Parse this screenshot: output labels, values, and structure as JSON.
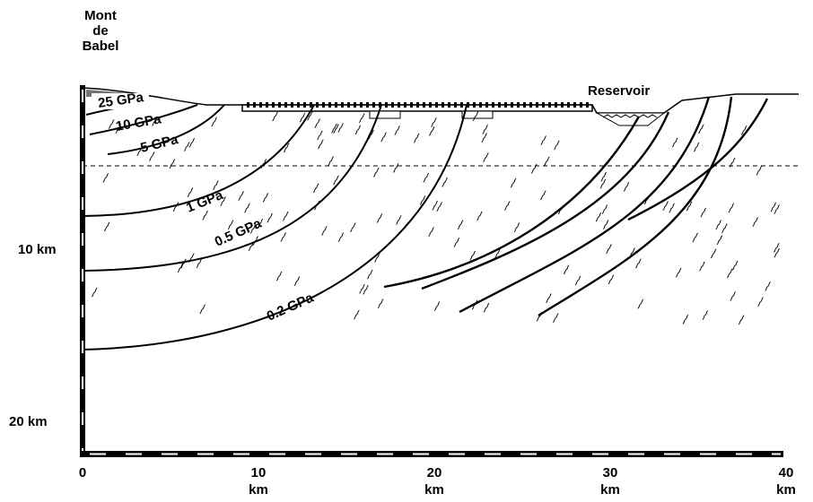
{
  "location_label": [
    "Mont",
    "de",
    "Babel"
  ],
  "reservoir_label": "Reservoir",
  "contour_labels": [
    "25 GPa",
    "10 GPa",
    "5 GPa",
    "1 GPa",
    "0.5 GPa",
    "0.2 GPa"
  ],
  "depth_axis": [
    "10 km",
    "20 km"
  ],
  "distance_axis": [
    {
      "number": "0"
    },
    {
      "number": "10",
      "unit": "km"
    },
    {
      "number": "20",
      "unit": "km"
    },
    {
      "number": "30",
      "unit": "km"
    },
    {
      "number": "40",
      "unit": "km"
    }
  ]
}
